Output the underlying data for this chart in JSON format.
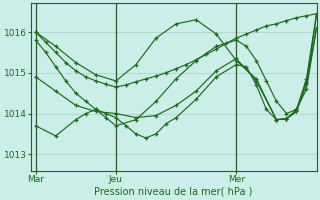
{
  "bg_color": "#cceee8",
  "grid_color": "#aacccc",
  "line_color": "#1a6b1a",
  "xlabel": "Pression niveau de la mer( hPa )",
  "xlabel_color": "#1a6b1a",
  "tick_color": "#1a6b1a",
  "yticks": [
    1013,
    1014,
    1015,
    1016
  ],
  "xtick_labels": [
    "Mar",
    "Jeu",
    "Mer"
  ],
  "xtick_positions": [
    0,
    8,
    20
  ],
  "xlim": [
    -0.5,
    28
  ],
  "ylim": [
    1012.6,
    1016.7
  ],
  "vlines": [
    0,
    8,
    20
  ],
  "series": [
    {
      "x": [
        0,
        1,
        2,
        3,
        4,
        5,
        6,
        7,
        8,
        9,
        10,
        11,
        12,
        13,
        14,
        15,
        16,
        17,
        18,
        19,
        20,
        21,
        22,
        23,
        24,
        25,
        26,
        27,
        28
      ],
      "y": [
        1016.0,
        1015.75,
        1015.5,
        1015.25,
        1015.05,
        1014.9,
        1014.8,
        1014.72,
        1014.65,
        1014.7,
        1014.78,
        1014.85,
        1014.92,
        1015.0,
        1015.1,
        1015.2,
        1015.32,
        1015.45,
        1015.58,
        1015.72,
        1015.85,
        1015.95,
        1016.05,
        1016.15,
        1016.2,
        1016.28,
        1016.35,
        1016.4,
        1016.45
      ]
    },
    {
      "x": [
        0,
        1,
        2,
        3,
        4,
        5,
        6,
        7,
        8,
        10,
        12,
        14,
        16,
        18,
        20,
        21,
        22,
        23,
        24,
        25,
        26,
        27,
        28
      ],
      "y": [
        1015.8,
        1015.5,
        1015.15,
        1014.8,
        1014.5,
        1014.3,
        1014.1,
        1013.9,
        1013.7,
        1013.85,
        1014.3,
        1014.85,
        1015.3,
        1015.65,
        1015.8,
        1015.65,
        1015.3,
        1014.8,
        1014.3,
        1014.0,
        1014.1,
        1014.6,
        1016.1
      ]
    },
    {
      "x": [
        0,
        2,
        4,
        6,
        8,
        10,
        12,
        14,
        16,
        18,
        20,
        22,
        24,
        25,
        26,
        27,
        28
      ],
      "y": [
        1014.9,
        1014.55,
        1014.2,
        1014.05,
        1014.0,
        1013.9,
        1013.95,
        1014.2,
        1014.55,
        1015.05,
        1015.35,
        1014.8,
        1013.85,
        1013.87,
        1014.05,
        1014.75,
        1016.4
      ]
    },
    {
      "x": [
        0,
        2,
        4,
        5,
        6,
        7,
        8,
        9,
        10,
        11,
        12,
        13,
        14,
        16,
        18,
        20,
        21,
        22,
        23,
        24,
        25,
        26,
        27,
        28
      ],
      "y": [
        1013.7,
        1013.45,
        1013.85,
        1014.0,
        1014.1,
        1014.0,
        1013.9,
        1013.7,
        1013.5,
        1013.4,
        1013.5,
        1013.75,
        1013.9,
        1014.35,
        1014.9,
        1015.2,
        1015.15,
        1014.7,
        1014.1,
        1013.85,
        1013.87,
        1014.05,
        1014.75,
        1016.1
      ]
    },
    {
      "x": [
        0,
        2,
        4,
        6,
        8,
        10,
        12,
        14,
        16,
        18,
        20,
        22,
        24,
        25,
        26,
        27,
        28
      ],
      "y": [
        1016.0,
        1015.65,
        1015.25,
        1014.95,
        1014.8,
        1015.2,
        1015.85,
        1016.2,
        1016.3,
        1015.95,
        1015.3,
        1014.85,
        1013.85,
        1013.87,
        1014.1,
        1014.85,
        1016.45
      ]
    }
  ]
}
